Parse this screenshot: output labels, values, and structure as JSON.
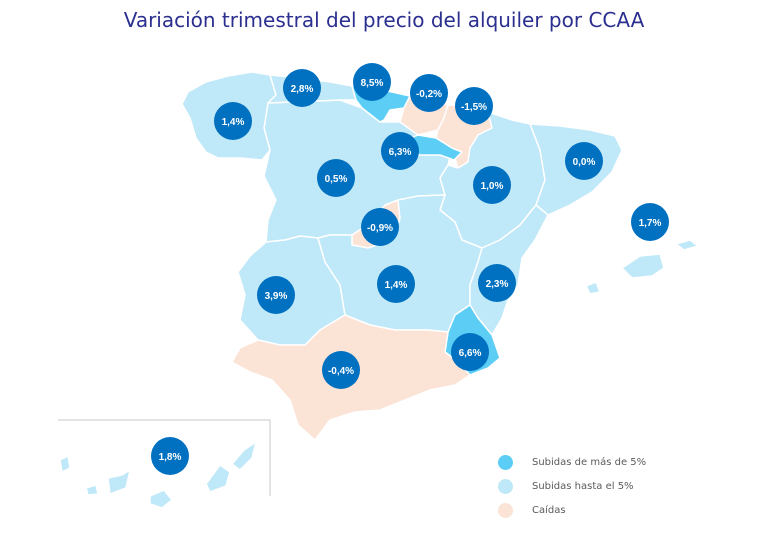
{
  "title": "Variación trimestral del precio del alquiler por CCAA",
  "colors": {
    "high": "#5ccdf5",
    "low": "#bfe8f8",
    "fall": "#fbe3d6",
    "badge": "#0070c0",
    "border": "#ffffff",
    "title": "#2b2f8f"
  },
  "legend": [
    {
      "label": "Subidas de más de 5%",
      "category": "high"
    },
    {
      "label": "Subidas hasta el 5%",
      "category": "low"
    },
    {
      "label": "Caídas",
      "category": "fall"
    }
  ],
  "regions": [
    {
      "name": "Galicia",
      "value": "1,4%",
      "category": "low"
    },
    {
      "name": "Asturias",
      "value": "2,8%",
      "category": "low"
    },
    {
      "name": "Cantabria",
      "value": "8,5%",
      "category": "high"
    },
    {
      "name": "País Vasco",
      "value": "-0,2%",
      "category": "fall"
    },
    {
      "name": "Navarra",
      "value": "-1,5%",
      "category": "fall"
    },
    {
      "name": "Castilla y León",
      "value": "0,5%",
      "category": "low"
    },
    {
      "name": "La Rioja",
      "value": "6,3%",
      "category": "high"
    },
    {
      "name": "Aragón",
      "value": "1,0%",
      "category": "low"
    },
    {
      "name": "Cataluña",
      "value": "0,0%",
      "category": "low"
    },
    {
      "name": "Madrid",
      "value": "-0,9%",
      "category": "fall"
    },
    {
      "name": "Baleares",
      "value": "1,7%",
      "category": "low"
    },
    {
      "name": "Extremadura",
      "value": "3,9%",
      "category": "low"
    },
    {
      "name": "Castilla-La Mancha",
      "value": "1,4%",
      "category": "low"
    },
    {
      "name": "C. Valenciana",
      "value": "2,3%",
      "category": "low"
    },
    {
      "name": "Murcia",
      "value": "6,6%",
      "category": "high"
    },
    {
      "name": "Andalucía",
      "value": "-0,4%",
      "category": "fall"
    },
    {
      "name": "Canarias",
      "value": "1,8%",
      "category": "low"
    }
  ]
}
